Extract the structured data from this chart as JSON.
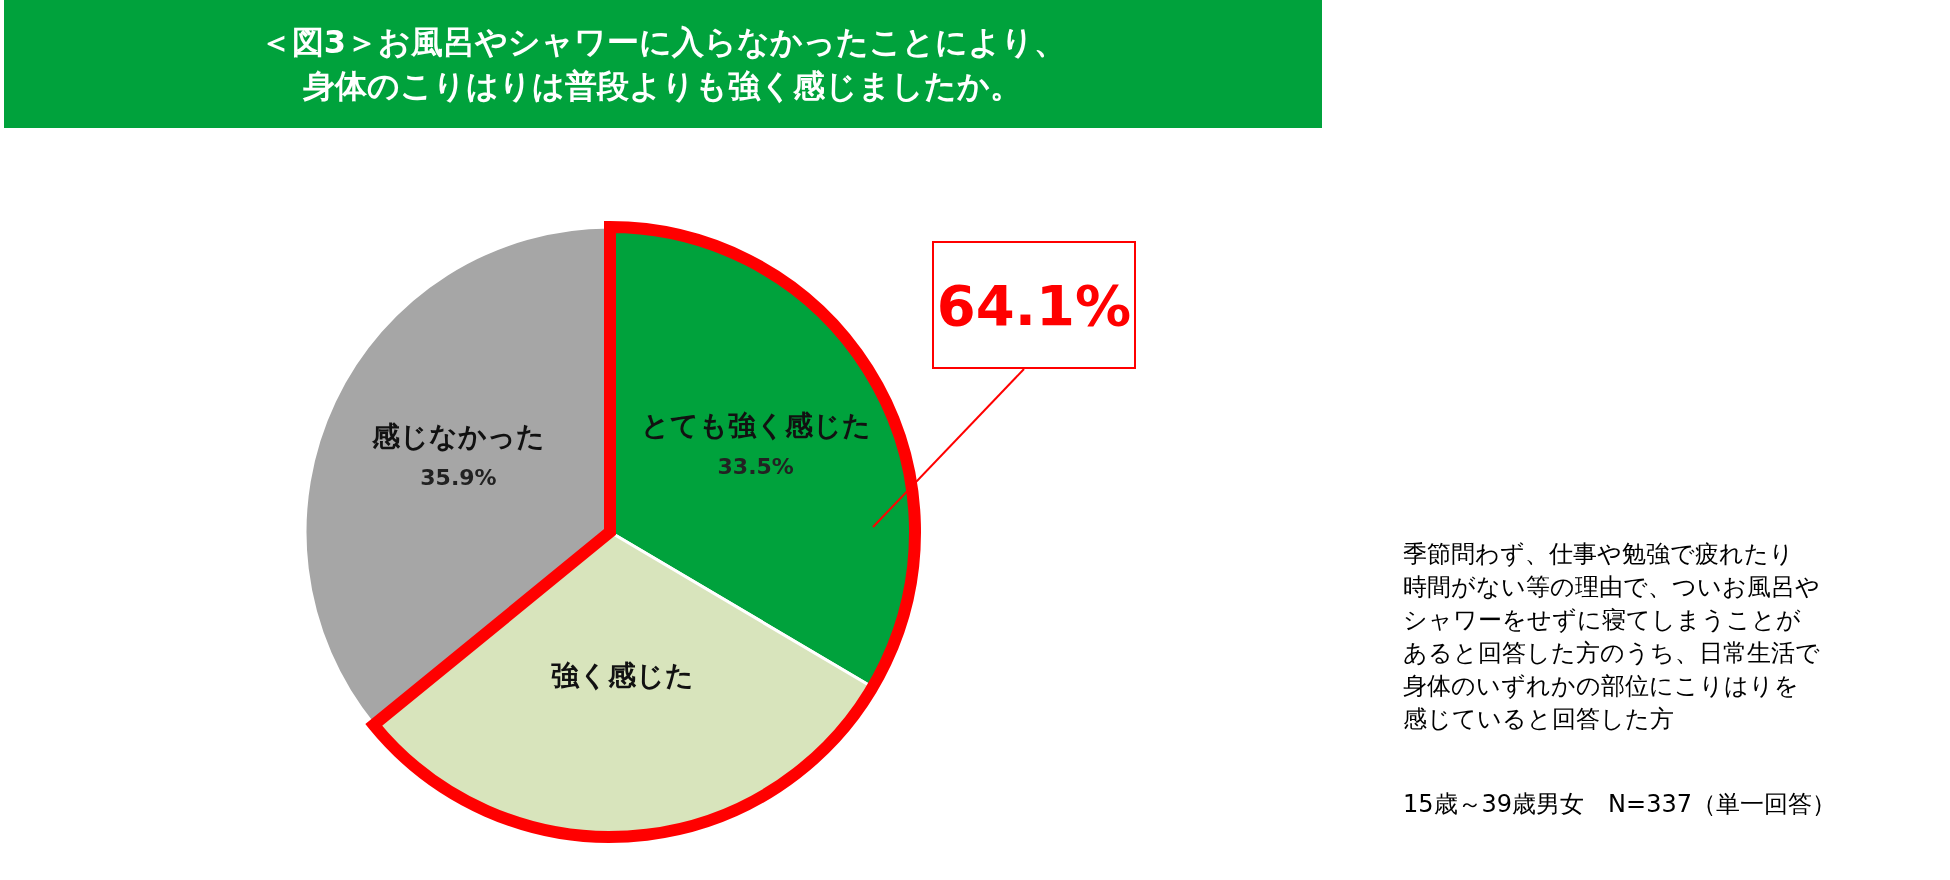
{
  "chart_data": {
    "type": "pie",
    "title": "＜図3＞お風呂やシャワーに入らなかったことにより、身体のこりはりは普段よりも強く感じましたか。",
    "categories": [
      "とても強く感じた",
      "強く感じた",
      "感じなかった"
    ],
    "values": [
      33.5,
      30.6,
      35.9
    ],
    "value_labels": [
      "33.5%",
      null,
      "35.9%"
    ],
    "colors": [
      "#00a23c",
      "#d8e4bc",
      "#a6a6a6"
    ],
    "annotations": [
      "64.1%",
      "季節問わず、仕事や勉強で疲れたり",
      "時間がない等の理由で、ついお風呂や",
      "シャワーをせずに寝てしまうことが",
      "あると回答した方のうち、日常生活で",
      "身体のいずれかの部位にこりはりを",
      "感じていると回答した方",
      "15歳～39歳男女　N=337（単一回答）"
    ]
  }
}
